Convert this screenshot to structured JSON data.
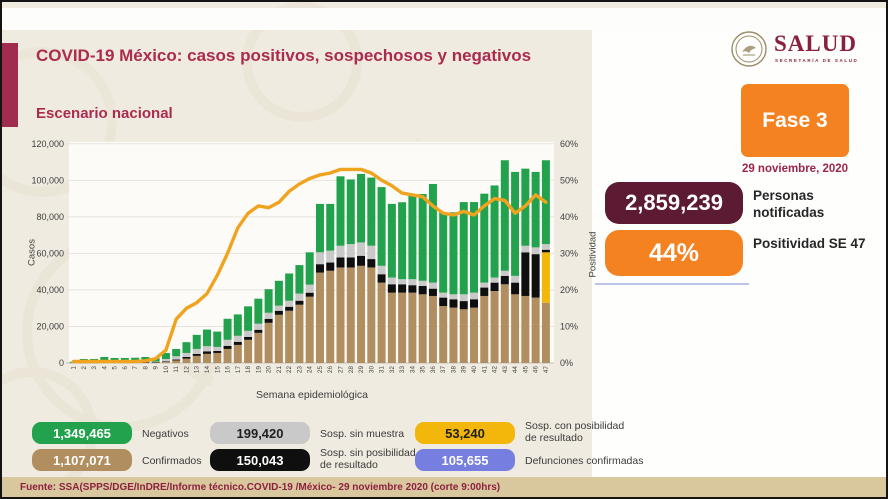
{
  "header": {
    "title": "COVID-19 México: casos positivos, sospechosos y negativos",
    "subtitle": "Escenario nacional"
  },
  "logo": {
    "wordmark": "SALUD",
    "subtitle": "SECRETARÍA DE SALUD"
  },
  "phase": {
    "label": "Fase 3",
    "date": "29 noviembre, 2020",
    "color": "#f58220"
  },
  "stats": {
    "notified": {
      "value": "2,859,239",
      "label": "Personas notificadas",
      "color": "#5c1b33"
    },
    "positivity": {
      "value": "44%",
      "label": "Positividad SE 47",
      "color": "#f58220"
    }
  },
  "legend": {
    "items": [
      {
        "value": "1,349,465",
        "label": "Negativos",
        "color": "#23a24d",
        "text_color": "#ffffff"
      },
      {
        "value": "1,107,071",
        "label": "Confirmados",
        "color": "#b18e5f",
        "text_color": "#ffffff"
      },
      {
        "value": "199,420",
        "label": "Sosp. sin muestra",
        "color": "#c9c9c9",
        "text_color": "#1f1f1f"
      },
      {
        "value": "150,043",
        "label": "Sosp. sin posibilidad de resultado",
        "color": "#0f0f0f",
        "text_color": "#ffffff"
      },
      {
        "value": "53,240",
        "label": "Sosp. con posibilidad de resultado",
        "color": "#f3b70c",
        "text_color": "#1f1f1f"
      },
      {
        "value": "105,655",
        "label": "Defunciones confirmadas",
        "color": "#767ee0",
        "text_color": "#ffffff"
      }
    ]
  },
  "footer": {
    "source": "Fuente: SSA(SPPS/DGE/InDRE/Informe técnico.COVID-19 /México- 29 noviembre 2020 (corte 9:00hrs)"
  },
  "chart_data": {
    "type": "stacked-bar+line",
    "title": "Escenario nacional",
    "xlabel": "Semana epidemiológica",
    "ylabel": "Casos",
    "y2label": "Positividad",
    "ylim": [
      0,
      120000
    ],
    "y2lim": [
      0,
      60
    ],
    "grid": true,
    "categories": [
      1,
      2,
      3,
      4,
      5,
      6,
      7,
      8,
      9,
      10,
      11,
      12,
      13,
      14,
      15,
      16,
      17,
      18,
      19,
      20,
      21,
      22,
      23,
      24,
      25,
      26,
      27,
      28,
      29,
      30,
      31,
      32,
      33,
      34,
      35,
      36,
      37,
      38,
      39,
      40,
      41,
      42,
      43,
      44,
      45,
      46,
      47
    ],
    "series": [
      {
        "name": "Confirmados",
        "color": "#b18e5f",
        "values": [
          100,
          200,
          200,
          300,
          300,
          300,
          300,
          400,
          400,
          700,
          1400,
          2400,
          3900,
          5000,
          5500,
          7700,
          9900,
          12700,
          16500,
          22000,
          26400,
          28600,
          31900,
          36300,
          49500,
          50500,
          52300,
          52300,
          53200,
          52300,
          44000,
          38500,
          38500,
          38500,
          37600,
          36700,
          31200,
          30300,
          29400,
          30300,
          36700,
          39400,
          43100,
          37600,
          36700,
          35800,
          33000
        ]
      },
      {
        "name": "Sosp. con posibilidad de resultado",
        "color": "#f3b70c",
        "values": [
          0,
          0,
          0,
          0,
          0,
          0,
          0,
          0,
          0,
          0,
          0,
          0,
          0,
          0,
          0,
          0,
          0,
          0,
          0,
          0,
          0,
          0,
          0,
          0,
          0,
          0,
          0,
          0,
          0,
          0,
          0,
          0,
          0,
          0,
          0,
          0,
          0,
          0,
          0,
          0,
          0,
          0,
          0,
          0,
          0,
          0,
          27600
        ]
      },
      {
        "name": "Sosp. sin posibilidad de resultado",
        "color": "#0f0f0f",
        "values": [
          0,
          100,
          100,
          100,
          100,
          100,
          100,
          100,
          100,
          200,
          500,
          900,
          1100,
          1400,
          1100,
          1700,
          1700,
          1600,
          1700,
          2200,
          2200,
          2200,
          2200,
          2200,
          4600,
          4500,
          5500,
          5500,
          5500,
          4600,
          4600,
          4600,
          4600,
          4100,
          4600,
          4000,
          4600,
          4600,
          4500,
          4600,
          4600,
          4600,
          4600,
          6400,
          23900,
          23800,
          1400
        ]
      },
      {
        "name": "Sosp. sin muestra",
        "color": "#c9c9c9",
        "values": [
          100,
          200,
          200,
          300,
          250,
          250,
          300,
          300,
          270,
          1300,
          1800,
          2200,
          2700,
          2800,
          2200,
          3300,
          3300,
          3300,
          3300,
          3300,
          2800,
          3300,
          3900,
          4400,
          6500,
          6500,
          6400,
          7300,
          7300,
          7300,
          4600,
          3700,
          2800,
          3300,
          2800,
          3300,
          2700,
          2700,
          3700,
          3600,
          2700,
          2800,
          2800,
          3700,
          3600,
          3700,
          3100
        ]
      },
      {
        "name": "Negativos",
        "color": "#23a24d",
        "values": [
          500,
          1700,
          1700,
          2600,
          2100,
          2100,
          2200,
          2500,
          1800,
          3300,
          4000,
          5900,
          7700,
          9100,
          8400,
          11500,
          11700,
          13400,
          13700,
          12900,
          13600,
          14900,
          15600,
          17700,
          26500,
          25600,
          38000,
          35400,
          37500,
          37300,
          43100,
          40300,
          42100,
          46100,
          47500,
          54000,
          44000,
          44900,
          50500,
          49600,
          48700,
          50400,
          60500,
          56900,
          42200,
          41300,
          45900
        ]
      }
    ],
    "line": {
      "name": "Positividad (%)",
      "color": "#f0a31f",
      "values": [
        0.4,
        0.4,
        0.4,
        0.4,
        0.4,
        0.4,
        0.4,
        0.6,
        1.2,
        3.5,
        12,
        15,
        16.5,
        19,
        24,
        30,
        37,
        41,
        43,
        42.5,
        44,
        47,
        49,
        50.5,
        51.5,
        52,
        53,
        53,
        53,
        52,
        50,
        48.5,
        46.5,
        46,
        45.5,
        43,
        41,
        40.5,
        41.5,
        40.5,
        43,
        45,
        44.5,
        41,
        43,
        46,
        44
      ]
    }
  }
}
